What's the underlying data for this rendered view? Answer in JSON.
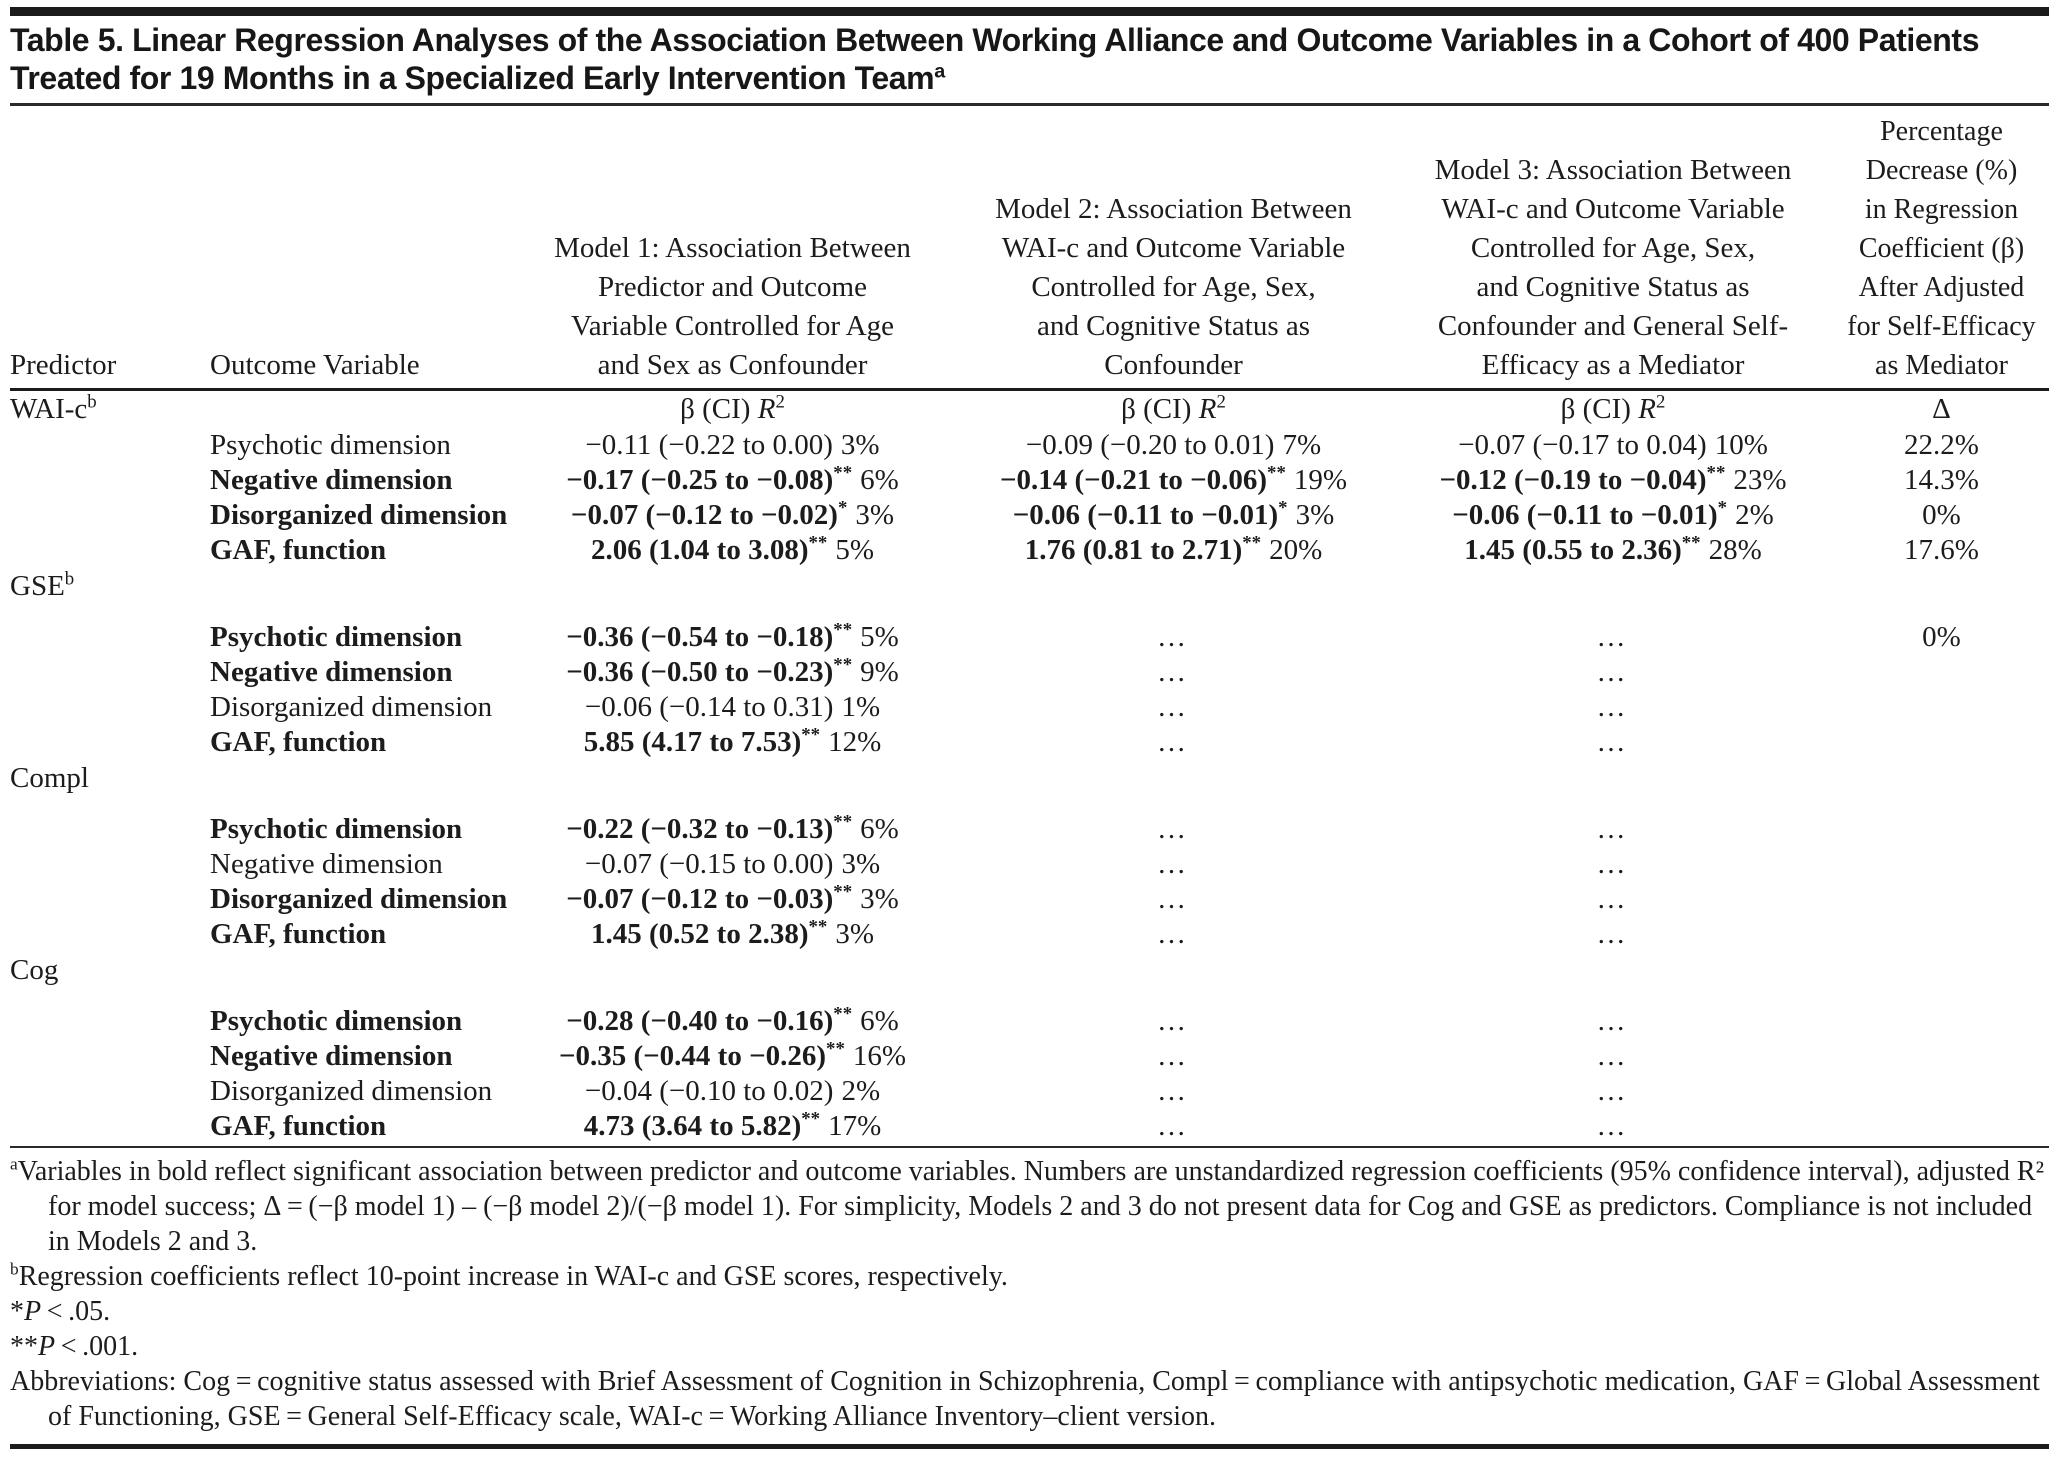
{
  "title": {
    "text": "Table 5. Linear Regression Analyses of the Association Between Working Alliance and Outcome Variables in a Cohort of 400 Patients Treated for 19 Months in a Specialized Early Intervention Team",
    "sup": "a"
  },
  "table": {
    "columns": {
      "predictor": "Predictor",
      "outcome": "Outcome Variable",
      "model1": "Model 1: Association Between\nPredictor and Outcome\nVariable Controlled for Age\nand Sex as Confounder",
      "model2": "Model 2: Association Between\nWAI-c and Outcome Variable\nControlled for Age, Sex,\nand Cognitive Status as\nConfounder",
      "model3": "Model 3: Association Between\nWAI-c and Outcome Variable\nControlled for Age, Sex,\nand Cognitive Status as\nConfounder and General Self-\nEfficacy as a Mediator",
      "delta": "Percentage\nDecrease (%)\nin Regression\nCoefficient (β)\nAfter Adjusted\nfor Self-Efficacy\nas Mediator"
    },
    "beta_header": {
      "prefix": "β (CI) ",
      "r": "R",
      "sup2": "2"
    },
    "delta_symbol": "Δ",
    "dots": "…",
    "sections": [
      {
        "label": "WAI-c",
        "label_sup": "b",
        "beta_header": true,
        "rows": [
          {
            "outcome": "Psychotic dimension",
            "bold": false,
            "m1": {
              "ci": "−0.11 (−0.22 to 0.00)",
              "stars": "",
              "pct": "3%"
            },
            "m2": {
              "ci": "−0.09 (−0.20 to 0.01)",
              "stars": "",
              "pct": "7%"
            },
            "m3": {
              "ci": "−0.07 (−0.17 to 0.04)",
              "stars": "",
              "pct": "10%"
            },
            "delta": "22.2%"
          },
          {
            "outcome": "Negative dimension",
            "bold": true,
            "m1": {
              "ci": "−0.17 (−0.25 to −0.08)",
              "stars": "**",
              "pct": "6%"
            },
            "m2": {
              "ci": "−0.14 (−0.21 to −0.06)",
              "stars": "**",
              "pct": "19%"
            },
            "m3": {
              "ci": "−0.12 (−0.19 to −0.04)",
              "stars": "**",
              "pct": "23%"
            },
            "delta": "14.3%"
          },
          {
            "outcome": "Disorganized dimension",
            "bold": true,
            "m1": {
              "ci": "−0.07 (−0.12 to −0.02)",
              "stars": "*",
              "pct": "3%"
            },
            "m2": {
              "ci": "−0.06 (−0.11 to −0.01)",
              "stars": "*",
              "pct": "3%"
            },
            "m3": {
              "ci": "−0.06 (−0.11 to −0.01)",
              "stars": "*",
              "pct": "2%"
            },
            "delta": "0%"
          },
          {
            "outcome": "GAF, function",
            "bold": true,
            "m1": {
              "ci": "2.06 (1.04 to 3.08)",
              "stars": "**",
              "pct": "5%"
            },
            "m2": {
              "ci": "1.76 (0.81 to 2.71)",
              "stars": "**",
              "pct": "20%"
            },
            "m3": {
              "ci": "1.45 (0.55 to 2.36)",
              "stars": "**",
              "pct": "28%"
            },
            "delta": "17.6%"
          }
        ]
      },
      {
        "label": "GSE",
        "label_sup": "b",
        "beta_header": false,
        "rows": [
          {
            "outcome": "Psychotic dimension",
            "bold": true,
            "m1": {
              "ci": "−0.36 (−0.54 to −0.18)",
              "stars": "**",
              "pct": "5%"
            },
            "m2": {
              "dots": true
            },
            "m3": {
              "dots": true
            },
            "delta": "0%"
          },
          {
            "outcome": "Negative dimension",
            "bold": true,
            "m1": {
              "ci": "−0.36 (−0.50 to −0.23)",
              "stars": "**",
              "pct": "9%"
            },
            "m2": {
              "dots": true
            },
            "m3": {
              "dots": true
            },
            "delta": ""
          },
          {
            "outcome": "Disorganized dimension",
            "bold": false,
            "m1": {
              "ci": "−0.06 (−0.14 to 0.31)",
              "stars": "",
              "pct": "1%"
            },
            "m2": {
              "dots": true
            },
            "m3": {
              "dots": true
            },
            "delta": ""
          },
          {
            "outcome": "GAF, function",
            "bold": true,
            "m1": {
              "ci": "5.85 (4.17 to 7.53)",
              "stars": "**",
              "pct": "12%"
            },
            "m2": {
              "dots": true
            },
            "m3": {
              "dots": true
            },
            "delta": ""
          }
        ]
      },
      {
        "label": "Compl",
        "label_sup": "",
        "beta_header": false,
        "rows": [
          {
            "outcome": "Psychotic dimension",
            "bold": true,
            "m1": {
              "ci": "−0.22 (−0.32 to −0.13)",
              "stars": "**",
              "pct": "6%"
            },
            "m2": {
              "dots": true
            },
            "m3": {
              "dots": true
            },
            "delta": ""
          },
          {
            "outcome": "Negative dimension",
            "bold": false,
            "m1": {
              "ci": "−0.07 (−0.15 to 0.00)",
              "stars": "",
              "pct": "3%"
            },
            "m2": {
              "dots": true
            },
            "m3": {
              "dots": true
            },
            "delta": ""
          },
          {
            "outcome": "Disorganized dimension",
            "bold": true,
            "m1": {
              "ci": "−0.07 (−0.12 to −0.03)",
              "stars": "**",
              "pct": "3%"
            },
            "m2": {
              "dots": true
            },
            "m3": {
              "dots": true
            },
            "delta": ""
          },
          {
            "outcome": "GAF, function",
            "bold": true,
            "m1": {
              "ci": "1.45 (0.52 to 2.38)",
              "stars": "**",
              "pct": "3%"
            },
            "m2": {
              "dots": true
            },
            "m3": {
              "dots": true
            },
            "delta": ""
          }
        ]
      },
      {
        "label": "Cog",
        "label_sup": "",
        "beta_header": false,
        "rows": [
          {
            "outcome": "Psychotic dimension",
            "bold": true,
            "m1": {
              "ci": "−0.28 (−0.40 to −0.16)",
              "stars": "**",
              "pct": "6%"
            },
            "m2": {
              "dots": true
            },
            "m3": {
              "dots": true
            },
            "delta": ""
          },
          {
            "outcome": "Negative dimension",
            "bold": true,
            "m1": {
              "ci": "−0.35 (−0.44 to −0.26)",
              "stars": "**",
              "pct": "16%"
            },
            "m2": {
              "dots": true
            },
            "m3": {
              "dots": true
            },
            "delta": ""
          },
          {
            "outcome": "Disorganized dimension",
            "bold": false,
            "m1": {
              "ci": "−0.04 (−0.10 to 0.02)",
              "stars": "",
              "pct": "2%"
            },
            "m2": {
              "dots": true
            },
            "m3": {
              "dots": true
            },
            "delta": ""
          },
          {
            "outcome": "GAF, function",
            "bold": true,
            "m1": {
              "ci": "4.73 (3.64 to 5.82)",
              "stars": "**",
              "pct": "17%"
            },
            "m2": {
              "dots": true
            },
            "m3": {
              "dots": true
            },
            "delta": ""
          }
        ]
      }
    ]
  },
  "footnotes": {
    "a": {
      "sup": "a",
      "text": "Variables in bold reflect significant association between predictor and outcome variables. Numbers are unstandardized regression coefficients (95% confidence interval), adjusted R² for model success; Δ = (−β model 1) – (−β model 2)/(−β model 1). For simplicity, Models 2 and 3 do not present data for Cog and GSE as predictors. Compliance is not included in Models 2 and 3."
    },
    "b": {
      "sup": "b",
      "text": "Regression coefficients reflect 10-point increase in WAI-c and GSE scores, respectively."
    },
    "p05": {
      "stars": "*",
      "p": "P",
      "rest": " < .05."
    },
    "p001": {
      "stars": "**",
      "p": "P",
      "rest": " < .001."
    },
    "abbreviations": "Abbreviations: Cog = cognitive status assessed with Brief Assessment of Cognition in Schizophrenia, Compl = compliance with antipsychotic medication, GAF = Global Assessment of Functioning, GSE = General Self-Efficacy scale, WAI-c = Working Alliance Inventory–client version."
  },
  "colors": {
    "text": "#1c1c1c",
    "rule": "#1b1b1b",
    "background": "#ffffff"
  }
}
